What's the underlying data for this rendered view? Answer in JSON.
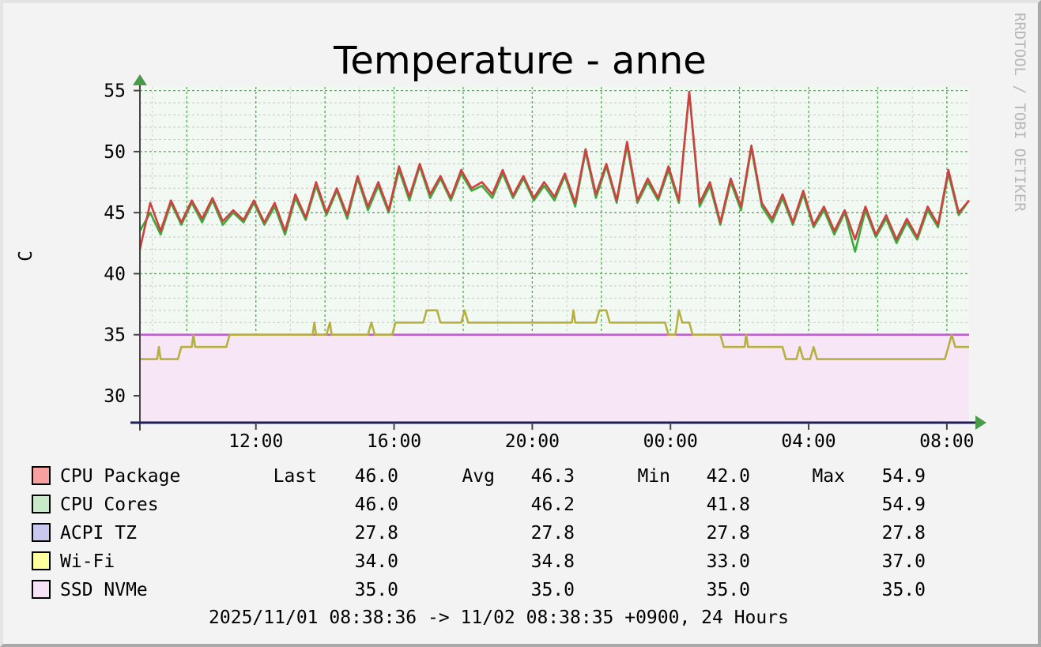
{
  "chart_data": {
    "type": "line",
    "title": "Temperature - anne",
    "ylabel": "C",
    "watermark": "RRDTOOL / TOBI OETIKER",
    "ylim": [
      27.8,
      55.3
    ],
    "yticks": [
      30,
      35,
      40,
      45,
      50,
      55
    ],
    "x_range": [
      "2025/11/01 08:38:36",
      "2025/11/02 08:38:35"
    ],
    "xticks": [
      "12:00",
      "16:00",
      "20:00",
      "00:00",
      "04:00",
      "08:00"
    ],
    "xtick_hours": [
      3.357,
      7.357,
      11.357,
      15.357,
      19.357,
      23.357
    ],
    "grid": true,
    "footer": "2025/11/01 08:38:36 -> 11/02 08:38:35 +0900, 24 Hours",
    "legend_headers": {
      "last": "Last",
      "avg": "Avg",
      "min": "Min",
      "max": "Max"
    },
    "series": [
      {
        "name": "CPU Package",
        "color": "#d04040",
        "swatch": "#f6a0a0",
        "stats": {
          "last": "46.0",
          "avg": "46.3",
          "min": "42.0",
          "max": "54.9"
        },
        "points": [
          [
            0,
            42.0
          ],
          [
            0.3,
            45.8
          ],
          [
            0.6,
            43.5
          ],
          [
            0.9,
            46.0
          ],
          [
            1.2,
            44.2
          ],
          [
            1.5,
            46.0
          ],
          [
            1.8,
            44.5
          ],
          [
            2.1,
            46.2
          ],
          [
            2.4,
            44.3
          ],
          [
            2.7,
            45.2
          ],
          [
            3.0,
            44.4
          ],
          [
            3.3,
            46.0
          ],
          [
            3.6,
            44.2
          ],
          [
            3.9,
            45.8
          ],
          [
            4.2,
            43.5
          ],
          [
            4.5,
            46.5
          ],
          [
            4.8,
            44.6
          ],
          [
            5.1,
            47.5
          ],
          [
            5.4,
            45.0
          ],
          [
            5.7,
            47.0
          ],
          [
            6.0,
            44.8
          ],
          [
            6.3,
            48.0
          ],
          [
            6.6,
            45.5
          ],
          [
            6.9,
            47.5
          ],
          [
            7.2,
            45.2
          ],
          [
            7.5,
            48.8
          ],
          [
            7.8,
            46.3
          ],
          [
            8.1,
            49.0
          ],
          [
            8.4,
            46.5
          ],
          [
            8.7,
            48.0
          ],
          [
            9.0,
            46.2
          ],
          [
            9.3,
            48.5
          ],
          [
            9.6,
            47.0
          ],
          [
            9.9,
            47.5
          ],
          [
            10.2,
            46.5
          ],
          [
            10.5,
            48.5
          ],
          [
            10.8,
            46.4
          ],
          [
            11.1,
            48.0
          ],
          [
            11.4,
            46.2
          ],
          [
            11.7,
            47.5
          ],
          [
            12.0,
            46.3
          ],
          [
            12.3,
            48.2
          ],
          [
            12.6,
            45.8
          ],
          [
            12.9,
            50.2
          ],
          [
            13.2,
            46.5
          ],
          [
            13.5,
            49.0
          ],
          [
            13.8,
            46.0
          ],
          [
            14.1,
            50.8
          ],
          [
            14.4,
            46.0
          ],
          [
            14.7,
            47.8
          ],
          [
            15.0,
            46.2
          ],
          [
            15.3,
            48.8
          ],
          [
            15.6,
            46.0
          ],
          [
            15.9,
            54.9
          ],
          [
            16.2,
            45.8
          ],
          [
            16.5,
            47.5
          ],
          [
            16.8,
            44.2
          ],
          [
            17.1,
            47.8
          ],
          [
            17.4,
            45.5
          ],
          [
            17.7,
            50.5
          ],
          [
            18.0,
            45.8
          ],
          [
            18.3,
            44.5
          ],
          [
            18.6,
            46.5
          ],
          [
            18.9,
            44.2
          ],
          [
            19.2,
            46.8
          ],
          [
            19.5,
            44.0
          ],
          [
            19.8,
            45.5
          ],
          [
            20.1,
            43.5
          ],
          [
            20.4,
            45.2
          ],
          [
            20.7,
            42.8
          ],
          [
            21.0,
            45.5
          ],
          [
            21.3,
            43.2
          ],
          [
            21.6,
            44.8
          ],
          [
            21.9,
            42.8
          ],
          [
            22.2,
            44.5
          ],
          [
            22.5,
            43.0
          ],
          [
            22.8,
            45.5
          ],
          [
            23.1,
            44.0
          ],
          [
            23.4,
            48.5
          ],
          [
            23.7,
            45.0
          ],
          [
            24.0,
            46.0
          ]
        ]
      },
      {
        "name": "CPU Cores",
        "color": "#3caa3c",
        "swatch": "#c8eac8",
        "stats": {
          "last": "46.0",
          "avg": "46.2",
          "min": "41.8",
          "max": "54.9"
        },
        "points": [
          [
            0,
            43.5
          ],
          [
            0.3,
            45.0
          ],
          [
            0.6,
            43.2
          ],
          [
            0.9,
            45.8
          ],
          [
            1.2,
            44.0
          ],
          [
            1.5,
            45.8
          ],
          [
            1.8,
            44.2
          ],
          [
            2.1,
            46.0
          ],
          [
            2.4,
            44.0
          ],
          [
            2.7,
            45.0
          ],
          [
            3.0,
            44.2
          ],
          [
            3.3,
            45.8
          ],
          [
            3.6,
            44.0
          ],
          [
            3.9,
            45.5
          ],
          [
            4.2,
            43.2
          ],
          [
            4.5,
            46.2
          ],
          [
            4.8,
            44.4
          ],
          [
            5.1,
            47.2
          ],
          [
            5.4,
            44.8
          ],
          [
            5.7,
            46.8
          ],
          [
            6.0,
            44.5
          ],
          [
            6.3,
            47.8
          ],
          [
            6.6,
            45.2
          ],
          [
            6.9,
            47.2
          ],
          [
            7.2,
            45.0
          ],
          [
            7.5,
            48.5
          ],
          [
            7.8,
            46.0
          ],
          [
            8.1,
            48.8
          ],
          [
            8.4,
            46.2
          ],
          [
            8.7,
            47.8
          ],
          [
            9.0,
            46.0
          ],
          [
            9.3,
            48.2
          ],
          [
            9.6,
            46.8
          ],
          [
            9.9,
            47.2
          ],
          [
            10.2,
            46.2
          ],
          [
            10.5,
            48.2
          ],
          [
            10.8,
            46.2
          ],
          [
            11.1,
            47.8
          ],
          [
            11.4,
            46.0
          ],
          [
            11.7,
            47.2
          ],
          [
            12.0,
            46.0
          ],
          [
            12.3,
            48.0
          ],
          [
            12.6,
            45.5
          ],
          [
            12.9,
            50.0
          ],
          [
            13.2,
            46.2
          ],
          [
            13.5,
            48.8
          ],
          [
            13.8,
            45.8
          ],
          [
            14.1,
            50.5
          ],
          [
            14.4,
            45.8
          ],
          [
            14.7,
            47.5
          ],
          [
            15.0,
            46.0
          ],
          [
            15.3,
            48.5
          ],
          [
            15.6,
            45.8
          ],
          [
            15.9,
            54.9
          ],
          [
            16.2,
            45.5
          ],
          [
            16.5,
            47.2
          ],
          [
            16.8,
            44.0
          ],
          [
            17.1,
            47.5
          ],
          [
            17.4,
            45.2
          ],
          [
            17.7,
            50.3
          ],
          [
            18.0,
            45.5
          ],
          [
            18.3,
            44.2
          ],
          [
            18.6,
            46.2
          ],
          [
            18.9,
            44.0
          ],
          [
            19.2,
            46.5
          ],
          [
            19.5,
            43.8
          ],
          [
            19.8,
            45.2
          ],
          [
            20.1,
            43.2
          ],
          [
            20.4,
            45.0
          ],
          [
            20.7,
            41.8
          ],
          [
            21.0,
            45.2
          ],
          [
            21.3,
            43.0
          ],
          [
            21.6,
            44.5
          ],
          [
            21.9,
            42.5
          ],
          [
            22.2,
            44.2
          ],
          [
            22.5,
            42.8
          ],
          [
            22.8,
            45.2
          ],
          [
            23.1,
            43.8
          ],
          [
            23.4,
            48.2
          ],
          [
            23.7,
            44.8
          ],
          [
            24.0,
            46.0
          ]
        ]
      },
      {
        "name": "ACPI TZ",
        "color": "#3a3a90",
        "swatch": "#c8c8ee",
        "stats": {
          "last": "27.8",
          "avg": "27.8",
          "min": "27.8",
          "max": "27.8"
        },
        "points": [
          [
            0,
            27.8
          ],
          [
            24.0,
            27.8
          ]
        ]
      },
      {
        "name": "Wi-Fi",
        "color": "#b5b040",
        "swatch": "#ffffa0",
        "stats": {
          "last": "34.0",
          "avg": "34.8",
          "min": "33.0",
          "max": "37.0"
        },
        "points": [
          [
            0,
            33.0
          ],
          [
            0.5,
            33.0
          ],
          [
            0.55,
            34.0
          ],
          [
            0.6,
            33.0
          ],
          [
            1.1,
            33.0
          ],
          [
            1.2,
            34.0
          ],
          [
            1.5,
            34.0
          ],
          [
            1.55,
            35.0
          ],
          [
            1.6,
            34.0
          ],
          [
            2.5,
            34.0
          ],
          [
            2.6,
            35.0
          ],
          [
            5.0,
            35.0
          ],
          [
            5.05,
            36.0
          ],
          [
            5.1,
            35.0
          ],
          [
            5.4,
            35.0
          ],
          [
            5.5,
            36.0
          ],
          [
            5.55,
            35.0
          ],
          [
            6.6,
            35.0
          ],
          [
            6.7,
            36.0
          ],
          [
            6.8,
            35.0
          ],
          [
            7.3,
            35.0
          ],
          [
            7.4,
            36.0
          ],
          [
            8.2,
            36.0
          ],
          [
            8.3,
            37.0
          ],
          [
            8.6,
            37.0
          ],
          [
            8.7,
            36.0
          ],
          [
            9.3,
            36.0
          ],
          [
            9.4,
            37.0
          ],
          [
            9.5,
            36.0
          ],
          [
            12.5,
            36.0
          ],
          [
            12.55,
            37.0
          ],
          [
            12.6,
            36.0
          ],
          [
            13.2,
            36.0
          ],
          [
            13.3,
            37.0
          ],
          [
            13.5,
            37.0
          ],
          [
            13.6,
            36.0
          ],
          [
            15.2,
            36.0
          ],
          [
            15.3,
            35.0
          ],
          [
            15.5,
            35.0
          ],
          [
            15.6,
            37.0
          ],
          [
            15.7,
            36.0
          ],
          [
            15.9,
            36.0
          ],
          [
            16.0,
            35.0
          ],
          [
            16.8,
            35.0
          ],
          [
            16.9,
            34.0
          ],
          [
            17.5,
            34.0
          ],
          [
            17.55,
            35.0
          ],
          [
            17.6,
            34.0
          ],
          [
            18.6,
            34.0
          ],
          [
            18.7,
            33.0
          ],
          [
            19.0,
            33.0
          ],
          [
            19.1,
            34.0
          ],
          [
            19.2,
            33.0
          ],
          [
            19.4,
            33.0
          ],
          [
            19.5,
            34.0
          ],
          [
            19.6,
            33.0
          ],
          [
            23.3,
            33.0
          ],
          [
            23.4,
            34.0
          ],
          [
            23.5,
            35.0
          ],
          [
            23.6,
            34.0
          ],
          [
            24.0,
            34.0
          ]
        ]
      },
      {
        "name": "SSD NVMe",
        "color": "#c060d0",
        "swatch": "#f6e4f6",
        "stats": {
          "last": "35.0",
          "avg": "35.0",
          "min": "35.0",
          "max": "35.0"
        },
        "points": [
          [
            0,
            35.0
          ],
          [
            24.0,
            35.0
          ]
        ]
      }
    ]
  }
}
